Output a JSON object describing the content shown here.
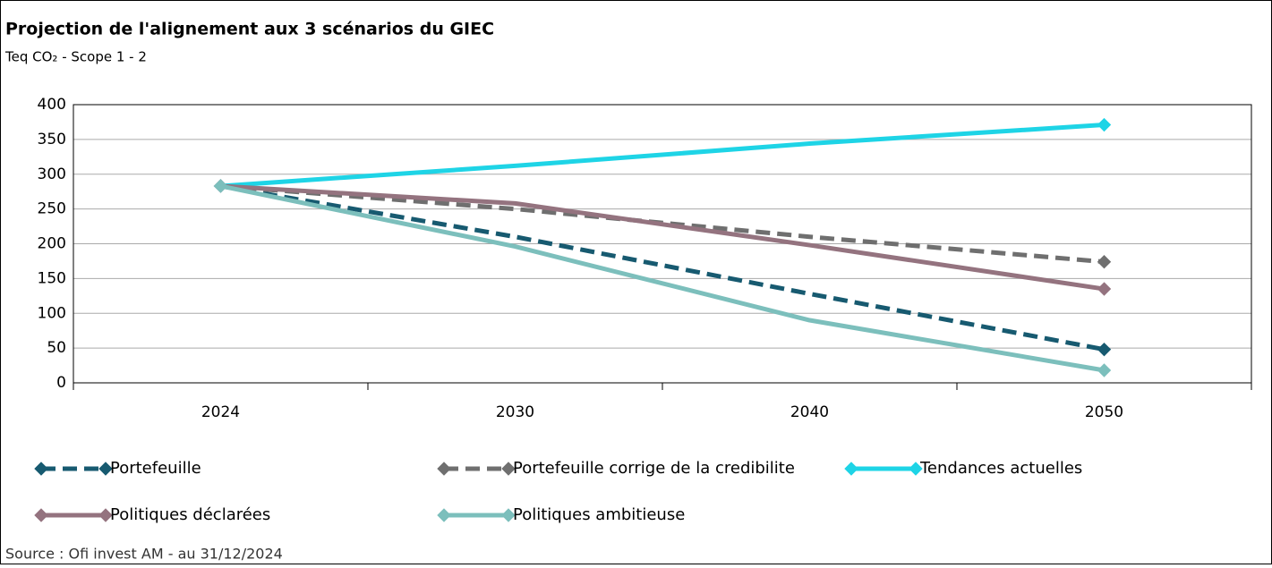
{
  "chart_data": {
    "type": "line",
    "title": "Projection de l'alignement aux 3 scénarios du GIEC",
    "subtitle": "Teq CO₂ - Scope 1 - 2",
    "source": "Source : Ofi invest AM - au 31/12/2024",
    "categories": [
      "2024",
      "2030",
      "2040",
      "2050"
    ],
    "series": [
      {
        "name": "Portefeuille",
        "color": "#175a70",
        "dash": true,
        "values": [
          283,
          210,
          128,
          48
        ]
      },
      {
        "name": "Portefeuille corrige de la credibilite",
        "color": "#6f6f6f",
        "dash": true,
        "values": [
          283,
          250,
          210,
          174
        ]
      },
      {
        "name": "Tendances actuelles",
        "color": "#1ed4e6",
        "dash": false,
        "values": [
          283,
          312,
          344,
          371
        ]
      },
      {
        "name": "Politiques déclarées",
        "color": "#94737f",
        "dash": false,
        "values": [
          283,
          258,
          198,
          135
        ]
      },
      {
        "name": "Politiques ambitieuse",
        "color": "#7cbfbc",
        "dash": false,
        "values": [
          283,
          196,
          90,
          18
        ]
      }
    ],
    "ylim": [
      0,
      400
    ],
    "yticks": [
      0,
      50,
      100,
      150,
      200,
      250,
      300,
      350,
      400
    ],
    "grid": true
  }
}
